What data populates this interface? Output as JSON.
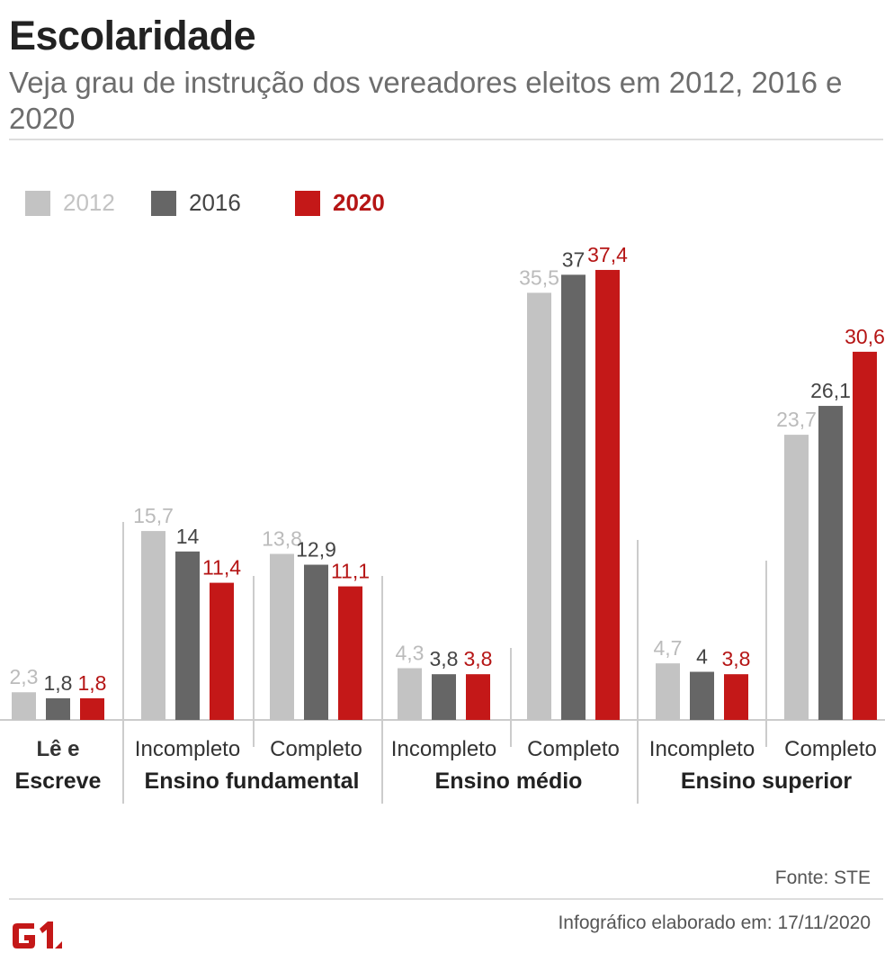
{
  "header": {
    "title": "Escolaridade",
    "subtitle": "Veja grau de instrução dos vereadores eleitos em 2012, 2016 e 2020"
  },
  "footer": {
    "source": "Fonte: STE",
    "credit": "Infográfico elaborado em: 17/11/2020",
    "logo_text": "G1"
  },
  "colors": {
    "2012": "#c3c3c3",
    "2016": "#666666",
    "2020": "#c41818"
  },
  "chart_data": {
    "type": "bar",
    "title": "Escolaridade",
    "subtitle": "Veja grau de instrução dos vereadores eleitos em 2012, 2016 e 2020",
    "categories": [
      "Lê e Escreve",
      "Ensino fundamental Incompleto",
      "Ensino fundamental Completo",
      "Ensino médio Incompleto",
      "Ensino médio Completo",
      "Ensino superior Incompleto",
      "Ensino superior Completo"
    ],
    "category_labels": [
      {
        "sub": "Lê e",
        "group": "Escreve"
      },
      {
        "sub": "Incompleto"
      },
      {
        "sub": "Completo"
      },
      {
        "sub": "Incompleto"
      },
      {
        "sub": "Completo"
      },
      {
        "sub": "Incompleto"
      },
      {
        "sub": "Completo"
      }
    ],
    "groups": [
      {
        "label": "Ensino fundamental",
        "categories": [
          1,
          2
        ]
      },
      {
        "label": "Ensino médio",
        "categories": [
          3,
          4
        ]
      },
      {
        "label": "Ensino superior",
        "categories": [
          5,
          6
        ]
      }
    ],
    "series": [
      {
        "name": "2012",
        "color": "#c3c3c3",
        "values": [
          2.3,
          15.7,
          13.8,
          4.3,
          35.5,
          4.7,
          23.7
        ],
        "labels": [
          "2,3",
          "15,7",
          "13,8",
          "4,3",
          "35,5",
          "4,7",
          "23,7"
        ]
      },
      {
        "name": "2016",
        "color": "#666666",
        "values": [
          1.8,
          14,
          12.9,
          3.8,
          37,
          4,
          26.1
        ],
        "labels": [
          "1,8",
          "14",
          "12,9",
          "3,8",
          "37",
          "4",
          "26,1"
        ]
      },
      {
        "name": "2020",
        "color": "#c41818",
        "values": [
          1.8,
          11.4,
          11.1,
          3.8,
          37.4,
          3.8,
          30.6
        ],
        "labels": [
          "1,8",
          "11,4",
          "11,1",
          "3,8",
          "37,4",
          "3,8",
          "30,6"
        ]
      }
    ],
    "ylim": [
      0,
      38
    ],
    "grid": false,
    "legend_position": "top-left"
  }
}
